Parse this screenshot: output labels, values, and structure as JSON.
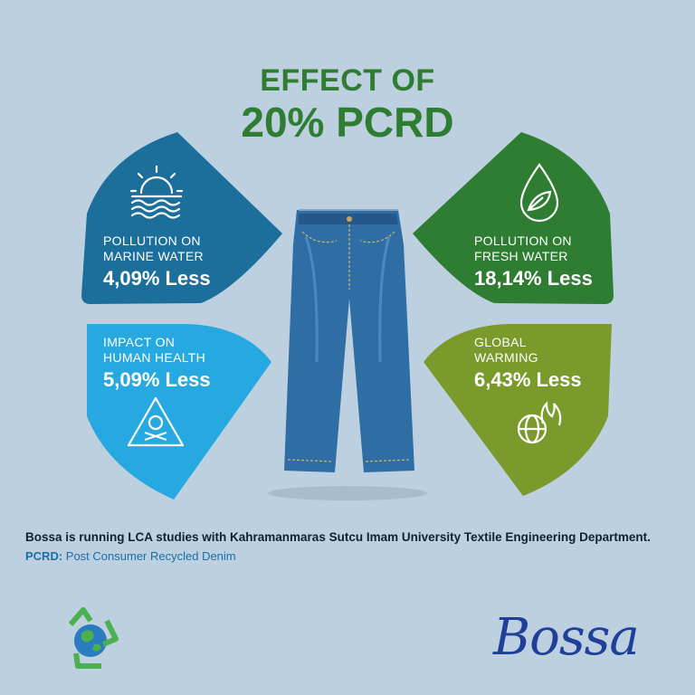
{
  "title": {
    "line1": "EFFECT OF",
    "line2": "20% PCRD"
  },
  "panels": {
    "marine": {
      "label1": "POLLUTION ON",
      "label2": "MARINE WATER",
      "value": "4,09% Less",
      "icon": "sun-over-waves-icon",
      "color": "#1c6f9b"
    },
    "human": {
      "label1": "IMPACT ON",
      "label2": "HUMAN HEALTH",
      "value": "5,09% Less",
      "icon": "skull-warning-icon",
      "color": "#26a9e0"
    },
    "fresh": {
      "label1": "POLLUTION ON",
      "label2": "FRESH WATER",
      "value": "18,14% Less",
      "icon": "water-drop-leaf-icon",
      "color": "#2e7d32"
    },
    "global": {
      "label1": "GLOBAL",
      "label2": "WARMING",
      "value": "6,43% Less",
      "icon": "globe-flame-icon",
      "color": "#7a9a2c"
    }
  },
  "footer": {
    "statement": "Bossa is running LCA studies with Kahramanmaras Sutcu Imam University Textile Engineering Department.",
    "definition_term": "PCRD:",
    "definition_text": " Post Consumer Recycled Denim"
  },
  "logo": {
    "text": "Bossa",
    "recycle_icon": "recycle-globe-icon"
  }
}
